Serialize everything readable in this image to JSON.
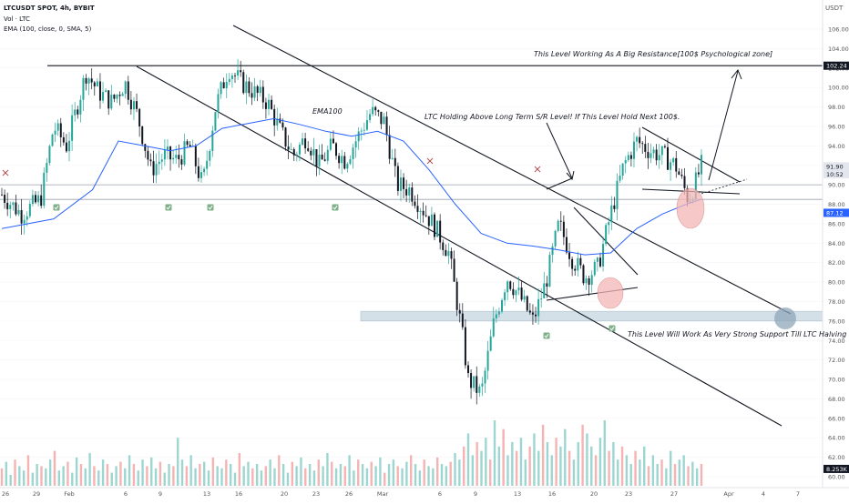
{
  "header": {
    "symbol_line": "LTCUSDT SPOT, 4h, BYBIT",
    "vol_line": "Vol · LTC",
    "ema_line": "EMA (100, close, 0, SMA, 5)",
    "currency": "USDT"
  },
  "annotations": {
    "resistance": "This Level Working As A Big Resistance[100$ Psychological zone]",
    "ema_label": "EMA100",
    "holding": "LTC Holding Above Long Term S/R Level! If This Level Hold Next 100$.",
    "support": "This Level Will Work As Very Strong Support Till LTC Halving"
  },
  "price_tags": {
    "resistance": "102.24",
    "current": "91.90",
    "countdown": "10:52",
    "ema": "87.12",
    "volume": "8.253K"
  },
  "colors": {
    "up": "#26a69a",
    "down": "#131722",
    "ema": "#2962ff",
    "vol_up": "#8ccfc9",
    "vol_down": "#f3a6a6",
    "zone": "#b2c8d6",
    "circle": "#f4b6b6"
  },
  "chart_data": {
    "type": "candlestick",
    "timeframe": "4h",
    "x_ticks": [
      "26",
      "29",
      "Feb",
      "6",
      "9",
      "13",
      "16",
      "20",
      "23",
      "26",
      "Mar",
      "6",
      "9",
      "13",
      "16",
      "20",
      "23",
      "27",
      "Apr",
      "4",
      "7"
    ],
    "y_ticks": [
      "106.00",
      "104.00",
      "102.00",
      "100.00",
      "98.00",
      "96.00",
      "94.00",
      "92.00",
      "90.00",
      "88.00",
      "86.00",
      "84.00",
      "82.00",
      "80.00",
      "78.00",
      "76.00",
      "74.00",
      "72.00",
      "70.00",
      "68.00",
      "66.00",
      "64.00",
      "62.00",
      "60.00"
    ],
    "ylim": [
      59,
      107
    ],
    "price_path": [
      [
        0,
        89
      ],
      [
        3,
        87
      ],
      [
        6,
        88.5
      ],
      [
        8,
        96
      ],
      [
        10,
        94
      ],
      [
        13,
        101.5
      ],
      [
        15,
        99.5
      ],
      [
        17,
        98.5
      ],
      [
        19,
        100.5
      ],
      [
        21,
        97
      ],
      [
        23,
        91.5
      ],
      [
        25,
        93
      ],
      [
        27,
        92.5
      ],
      [
        29,
        94
      ],
      [
        31,
        90
      ],
      [
        33,
        98
      ],
      [
        35,
        102
      ],
      [
        37,
        100.5
      ],
      [
        39,
        99.5
      ],
      [
        41,
        98.5
      ],
      [
        43,
        95.5
      ],
      [
        45,
        93
      ],
      [
        47,
        95
      ],
      [
        49,
        92
      ],
      [
        51,
        94
      ],
      [
        53,
        92.5
      ],
      [
        55,
        95
      ],
      [
        57,
        97.5
      ],
      [
        59,
        96.5
      ],
      [
        61,
        90
      ],
      [
        63,
        89.5
      ],
      [
        65,
        87.5
      ],
      [
        67,
        85.5
      ],
      [
        69,
        83
      ],
      [
        71,
        75
      ],
      [
        72,
        70
      ],
      [
        74,
        68.5
      ],
      [
        76,
        76
      ],
      [
        78,
        80.5
      ],
      [
        80,
        78.5
      ],
      [
        82,
        76
      ],
      [
        84,
        80
      ],
      [
        86,
        86
      ],
      [
        88,
        82.5
      ],
      [
        90,
        80.5
      ],
      [
        92,
        81.5
      ],
      [
        94,
        87
      ],
      [
        96,
        92
      ],
      [
        98,
        94.5
      ],
      [
        100,
        93.5
      ],
      [
        102,
        93
      ],
      [
        104,
        92
      ],
      [
        106,
        88.5
      ],
      [
        107,
        90
      ],
      [
        108,
        92
      ]
    ],
    "ema100_path": [
      [
        0,
        85.5
      ],
      [
        8,
        86.5
      ],
      [
        14,
        89.5
      ],
      [
        18,
        94.5
      ],
      [
        22,
        94
      ],
      [
        26,
        93.5
      ],
      [
        30,
        94
      ],
      [
        34,
        95.8
      ],
      [
        38,
        96.3
      ],
      [
        42,
        96.8
      ],
      [
        46,
        96.2
      ],
      [
        50,
        95.5
      ],
      [
        54,
        95
      ],
      [
        58,
        95.5
      ],
      [
        62,
        94.5
      ],
      [
        66,
        91.5
      ],
      [
        70,
        88
      ],
      [
        74,
        85
      ],
      [
        78,
        84
      ],
      [
        82,
        83.7
      ],
      [
        86,
        83.3
      ],
      [
        90,
        82.8
      ],
      [
        94,
        83
      ],
      [
        98,
        85.5
      ],
      [
        102,
        87
      ],
      [
        106,
        88.1
      ],
      [
        108,
        88.5
      ]
    ],
    "volume": [
      8,
      11,
      5,
      12,
      9,
      7,
      14,
      6,
      10,
      9,
      8,
      12,
      16,
      7,
      9,
      11,
      6,
      13,
      10,
      8,
      15,
      9,
      7,
      12,
      10,
      6,
      9,
      11,
      8,
      14,
      10,
      7,
      12,
      9,
      13,
      8,
      11,
      6,
      10,
      9,
      22,
      12,
      9,
      14,
      8,
      10,
      11,
      7,
      13,
      9,
      8,
      12,
      10,
      6,
      15,
      9,
      11,
      8,
      10,
      7,
      9,
      12,
      8,
      14,
      10,
      6,
      11,
      9,
      13,
      8,
      10,
      7,
      12,
      9,
      15,
      11,
      8,
      10,
      9,
      14,
      7,
      12,
      10,
      8,
      11,
      9,
      13,
      6,
      10,
      12,
      9,
      8,
      11,
      14,
      10,
      7,
      12,
      9,
      8,
      13,
      10,
      9,
      11,
      15,
      12,
      18,
      24,
      14,
      20,
      16,
      22,
      12,
      30,
      18,
      26,
      14,
      20,
      16,
      22,
      12,
      18,
      24,
      16,
      28,
      20,
      14,
      22,
      18,
      26,
      16,
      12,
      20,
      28,
      24,
      18,
      14,
      22,
      30,
      16,
      20,
      12,
      18,
      14,
      10,
      16,
      12,
      18,
      9,
      14,
      10,
      12,
      8,
      16,
      10,
      12,
      14,
      9,
      11,
      8,
      10
    ],
    "levels": {
      "resistance_line": 102.24,
      "sr_band_upper": 90,
      "sr_band_lower": 88.5,
      "support_zone": [
        76,
        77
      ]
    }
  }
}
